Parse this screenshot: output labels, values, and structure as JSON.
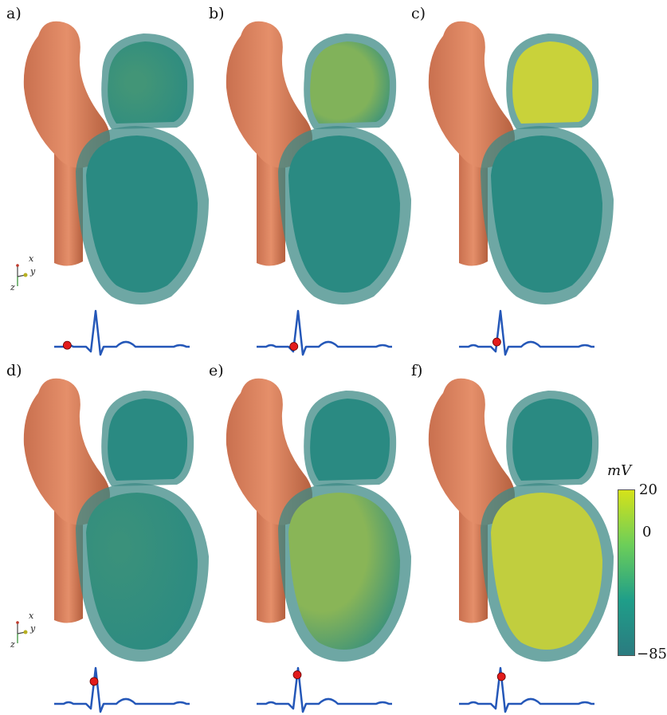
{
  "panels": [
    {
      "label": "a)",
      "atrium_activation": 0.15,
      "ventricle_activation": 0.0,
      "ecg_marker_phase": 0.06
    },
    {
      "label": "b)",
      "atrium_activation": 0.55,
      "ventricle_activation": 0.0,
      "ecg_marker_phase": 0.2
    },
    {
      "label": "c)",
      "atrium_activation": 1.0,
      "ventricle_activation": 0.0,
      "ecg_marker_phase": 0.22
    },
    {
      "label": "d)",
      "atrium_activation": 0.0,
      "ventricle_activation": 0.1,
      "ecg_marker_phase": 0.3
    },
    {
      "label": "e)",
      "atrium_activation": 0.0,
      "ventricle_activation": 0.6,
      "ecg_marker_phase": 0.33
    },
    {
      "label": "f)",
      "atrium_activation": 0.0,
      "ventricle_activation": 0.95,
      "ecg_marker_phase": 0.4
    }
  ],
  "axes_triad": {
    "x": "x",
    "y": "y",
    "z": "z"
  },
  "colorbar": {
    "title": "mV",
    "max_label": "20",
    "mid_label": "0",
    "min_label": "−85",
    "max": 20,
    "mid": 0,
    "min": -85,
    "colors": [
      "#2b7b80",
      "#1f9e89",
      "#6cce59",
      "#d5e21a"
    ]
  },
  "colors": {
    "aorta": "#e58f6a",
    "tissue_rest": "#2a8a82",
    "tissue_active": "#c9d23a",
    "ecg_line": "#2457b8",
    "marker": "#e21b1b"
  }
}
